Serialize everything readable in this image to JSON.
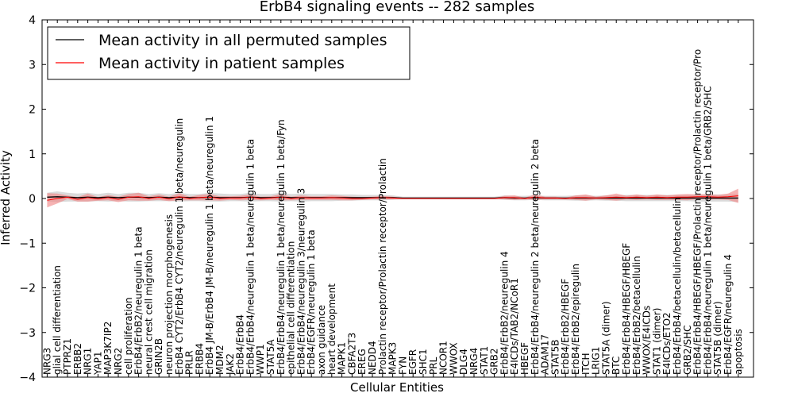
{
  "chart_data": {
    "type": "line",
    "title": "ErbB4 signaling events -- 282 samples",
    "xlabel": "Cellular Entities",
    "ylabel": "Inferred Activity",
    "ylim": [
      -4,
      4
    ],
    "yticks": [
      4,
      3,
      2,
      1,
      0,
      -1,
      -2,
      -3,
      -4
    ],
    "ytick_labels": [
      "4",
      "3",
      "2",
      "1",
      "0",
      "−1",
      "−2",
      "−3",
      "−4"
    ],
    "grid": false,
    "legend_position": "top-left",
    "categories": [
      "NRG3",
      "glial cell differentiation",
      "PTPRZ1",
      "ERBB2",
      "NRG1",
      "YAP1",
      "MAP3K7IP2",
      "NRG2",
      "cell proliferation",
      "ErbB4/ErbB2/neuregulin 1 beta",
      "neural crest cell migration",
      "GRIN2B",
      "neuron projection morphogenesis",
      "ErbB4 CYT2/ErbB4 CYT2/neuregulin 1 beta/neuregulin",
      "PRLR",
      "ERBB4",
      "ErbB4 JM-B/ErbB4 JM-B/neuregulin 1 beta/neuregulin 1",
      "MDM2",
      "JAK2",
      "ErbB4/ErbB4",
      "ErbB4/ErbB4/neuregulin 1 beta/neuregulin 1 beta",
      "WWP1",
      "STAT5A",
      "ErbB4/ErbB4/neuregulin 1 beta/neuregulin 1 beta/Fyn",
      "epithelial cell differentiation",
      "ErbB4/ErbB4/neuregulin 3/neuregulin 3",
      "ErbB4/EGFR/neuregulin 1 beta",
      "axon guidance",
      "heart development",
      "MAPK1",
      "CBFA2T3",
      "EREG",
      "NEDD4",
      "Prolactin receptor/Prolactin receptor/Prolactin",
      "MAPK3",
      "FYN",
      "EGFR",
      "SHC1",
      "PRL",
      "NCOR1",
      "WWOX",
      "DLG4",
      "NRG4",
      "STAT1",
      "GRB2",
      "ErbB4/ErbB2/neuregulin 4",
      "E4ICDs/TAB2/NCoR1",
      "HBEGF",
      "ErbB4/ErbB4/neuregulin 2 beta/neuregulin 2 beta",
      "ADAM17",
      "STAT5B",
      "ErbB4/ErbB2/HBEGF",
      "ErbB4/ErbB2/epiregulin",
      "ITCH",
      "LRIG1",
      "STAT5A (dimer)",
      "BTC",
      "ErbB4/ErbB4/HBEGF/HBEGF",
      "ErbB4/ErbB2/betacellulin",
      "WWOX/E4ICDs",
      "STAT1 (dimer)",
      "E4ICDs/ETO2",
      "ErbB4/ErbB4/betacellulin/betacellulin",
      "GRB2/SHC",
      "ErbB4/ErbB4/HBEGF/HBEGF/Prolactin receptor/Prolactin receptor/Pro",
      "ErbB4/ErbB4/neuregulin 1 beta/neuregulin 1 beta/GRB2/SHC",
      "STAT5B (dimer)",
      "ErbB4/EGFR/neuregulin 4",
      "apoptosis"
    ],
    "series": [
      {
        "name": "Mean activity in all permuted samples",
        "color": "#000000",
        "band_color": "#b0b0b0",
        "values": [
          0.03,
          0.04,
          0.03,
          0.02,
          0.03,
          0.02,
          0.03,
          0.02,
          0.03,
          0.03,
          0.02,
          0.03,
          0.02,
          0.03,
          0.02,
          0.02,
          0.03,
          0.02,
          0.02,
          0.02,
          0.03,
          0.02,
          0.02,
          0.03,
          0.02,
          0.02,
          0.02,
          0.02,
          0.02,
          0.02,
          0.02,
          0.02,
          0.02,
          0.02,
          0.02,
          0.01,
          0.01,
          0.01,
          0.01,
          0.01,
          0.01,
          0.01,
          0.01,
          0.01,
          0.01,
          0.02,
          0.01,
          0.01,
          0.02,
          0.01,
          0.01,
          0.01,
          0.01,
          0.01,
          0.01,
          0.01,
          0.01,
          0.01,
          0.01,
          0.01,
          0.01,
          0.01,
          0.01,
          0.01,
          0.01,
          0.01,
          0.01,
          0.01,
          0.01
        ],
        "band": [
          0.1,
          0.12,
          0.1,
          0.09,
          0.1,
          0.08,
          0.1,
          0.08,
          0.1,
          0.1,
          0.08,
          0.09,
          0.08,
          0.1,
          0.08,
          0.08,
          0.1,
          0.09,
          0.08,
          0.08,
          0.1,
          0.08,
          0.08,
          0.1,
          0.08,
          0.09,
          0.08,
          0.08,
          0.08,
          0.07,
          0.07,
          0.06,
          0.06,
          0.06,
          0.05,
          0.03,
          0.03,
          0.03,
          0.03,
          0.03,
          0.03,
          0.03,
          0.03,
          0.03,
          0.03,
          0.05,
          0.05,
          0.05,
          0.05,
          0.05,
          0.05,
          0.05,
          0.06,
          0.06,
          0.05,
          0.06,
          0.06,
          0.07,
          0.07,
          0.07,
          0.07,
          0.07,
          0.07,
          0.07,
          0.08,
          0.08,
          0.08,
          0.08,
          0.09
        ]
      },
      {
        "name": "Mean activity in patient samples",
        "color": "#ff0000",
        "band_color": "#f08080",
        "values": [
          -0.04,
          0.0,
          0.03,
          -0.02,
          0.02,
          -0.01,
          0.02,
          -0.02,
          0.03,
          0.04,
          0.0,
          0.03,
          -0.01,
          0.04,
          0.0,
          0.02,
          0.03,
          0.0,
          0.01,
          0.01,
          0.03,
          0.0,
          0.01,
          0.03,
          0.0,
          0.02,
          0.01,
          0.01,
          0.02,
          0.01,
          0.0,
          0.0,
          0.01,
          0.02,
          0.01,
          0.0,
          0.0,
          0.0,
          0.0,
          0.0,
          0.0,
          0.0,
          0.0,
          0.0,
          0.0,
          0.02,
          0.02,
          0.0,
          0.03,
          0.01,
          0.01,
          0.0,
          0.02,
          0.02,
          0.01,
          0.02,
          0.03,
          0.02,
          0.03,
          0.02,
          0.03,
          0.02,
          0.03,
          0.03,
          0.04,
          0.04,
          0.03,
          0.04,
          0.06
        ],
        "band": [
          0.16,
          0.11,
          0.04,
          0.05,
          0.09,
          0.04,
          0.06,
          0.06,
          0.07,
          0.09,
          0.05,
          0.06,
          0.05,
          0.08,
          0.04,
          0.06,
          0.07,
          0.05,
          0.04,
          0.05,
          0.06,
          0.04,
          0.04,
          0.07,
          0.04,
          0.05,
          0.04,
          0.04,
          0.05,
          0.05,
          0.04,
          0.03,
          0.03,
          0.04,
          0.03,
          0.01,
          0.01,
          0.01,
          0.01,
          0.01,
          0.01,
          0.01,
          0.01,
          0.01,
          0.01,
          0.04,
          0.05,
          0.02,
          0.06,
          0.03,
          0.03,
          0.02,
          0.05,
          0.07,
          0.03,
          0.05,
          0.08,
          0.04,
          0.06,
          0.04,
          0.06,
          0.05,
          0.06,
          0.07,
          0.05,
          0.06,
          0.05,
          0.07,
          0.16
        ]
      }
    ]
  }
}
